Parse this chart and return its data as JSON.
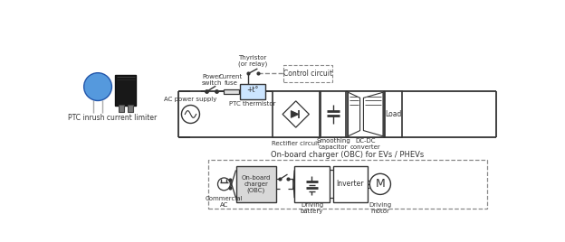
{
  "bg_color": "#ffffff",
  "line_color": "#333333",
  "dashed_color": "#888888",
  "top_circuit_labels": {
    "ac_power_supply": "AC power supply",
    "power_switch": "Power\nswitch",
    "current_fuse": "Current\nfuse",
    "ptc_thermistor": "PTC thermistor",
    "thyristor": "Thyristor\n(or relay)",
    "control_circuit": "Control circuit",
    "rectifier": "Rectifier circuit",
    "smoothing": "Smoothing\ncapacitor",
    "dc_dc": "DC-DC\nconverter",
    "load": "Load"
  },
  "bottom_circuit_labels": {
    "obc_title": "On-board charger (OBC) for EVs / PHEVs",
    "commercial_ac": "Commercial\nAC",
    "on_board": "On-board\ncharger\n(OBC)",
    "driving_battery": "Driving\nbattery",
    "inverter": "Inverter",
    "driving_motor": "Driving\nmotor"
  },
  "product_label": "PTC inrush current limiter"
}
